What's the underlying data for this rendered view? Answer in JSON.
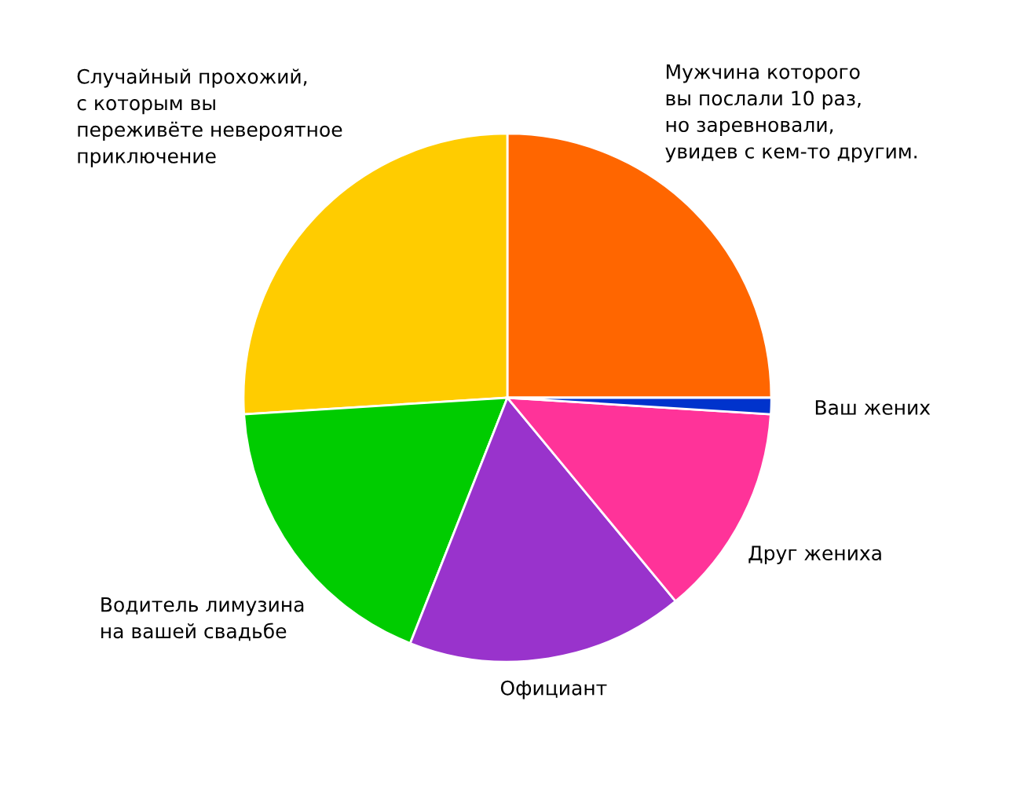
{
  "chart_data": {
    "type": "pie",
    "categories": [
      "Мужчина которого\nвы послали 10 раз,\nно заревновали,\nувидев с кем-то другим.",
      "Случайный прохожий,\nс которым вы\nпереживёте невероятное\nприключение",
      "Водитель лимузина\nна вашей свадьбе",
      "Официант",
      "Друг жениха",
      "Ваш жених"
    ],
    "values": [
      25,
      26,
      18,
      17,
      13,
      1
    ],
    "colors": [
      "#ff6600",
      "#ffcc00",
      "#00cc00",
      "#9933cc",
      "#ff3399",
      "#0033cc"
    ]
  }
}
